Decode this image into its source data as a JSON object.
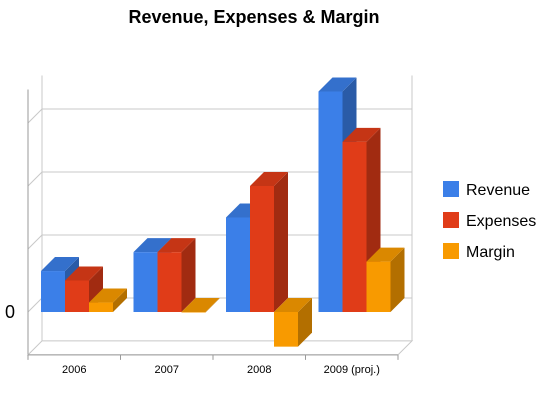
{
  "chart_data": {
    "type": "bar",
    "title": "Revenue, Expenses & Margin",
    "categories": [
      "2006",
      "2007",
      "2008",
      "2009 (proj.)"
    ],
    "y_zero_label": "0",
    "ylim": [
      -0.68,
      3.5
    ],
    "grid": true,
    "legend_position": "right",
    "series": [
      {
        "name": "Revenue",
        "color": "#3b7fe8",
        "values": [
          0.65,
          0.95,
          1.5,
          3.5
        ]
      },
      {
        "name": "Expenses",
        "color": "#e03c18",
        "values": [
          0.5,
          0.95,
          2.0,
          2.7
        ]
      },
      {
        "name": "Margin",
        "color": "#f89a00",
        "values": [
          0.15,
          0.0,
          -0.55,
          0.8
        ]
      }
    ]
  }
}
